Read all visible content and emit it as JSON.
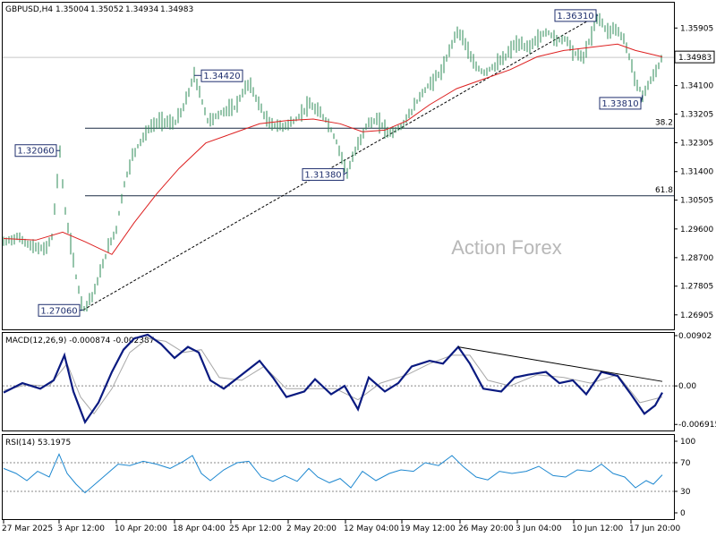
{
  "chart_data": {
    "type": "candlestick",
    "main": {
      "title": "GBPUSD,H4",
      "ohlc": [
        "1.35004",
        "1.35052",
        "1.34934",
        "1.34983"
      ],
      "ylim": [
        1.2645,
        1.367
      ],
      "yticks": [
        "1.35905",
        "1.35000",
        "1.34100",
        "1.33205",
        "1.32305",
        "1.31400",
        "1.30505",
        "1.29600",
        "1.28700",
        "1.27805",
        "1.26905"
      ],
      "current_price": "1.34983",
      "annotations": [
        {
          "text": "1.27060",
          "value": 1.2706,
          "bar": 93
        },
        {
          "text": "1.32060",
          "value": 1.3206,
          "bar": 67
        },
        {
          "text": "1.34420",
          "value": 1.3442,
          "bar": 217
        },
        {
          "text": "1.31380",
          "value": 1.3138,
          "bar": 388
        },
        {
          "text": "1.36310",
          "value": 1.3631,
          "bar": 668
        },
        {
          "text": "1.33810",
          "value": 1.3381,
          "bar": 718
        }
      ],
      "fib_levels": [
        {
          "label": "38.2",
          "value": 1.3276
        },
        {
          "label": "61.8",
          "value": 1.3064
        }
      ],
      "trendlines": [
        {
          "from": {
            "bar": 93,
            "value": 1.2706
          },
          "to": {
            "bar": 668,
            "value": 1.3631
          },
          "style": "dashed"
        }
      ],
      "price_path": [
        [
          4,
          1.2918
        ],
        [
          20,
          1.2935
        ],
        [
          35,
          1.2905
        ],
        [
          50,
          1.2895
        ],
        [
          58,
          1.2935
        ],
        [
          63,
          1.308
        ],
        [
          67,
          1.3206
        ],
        [
          72,
          1.303
        ],
        [
          78,
          1.293
        ],
        [
          85,
          1.281
        ],
        [
          93,
          1.2706
        ],
        [
          105,
          1.276
        ],
        [
          115,
          1.285
        ],
        [
          122,
          1.291
        ],
        [
          130,
          1.296
        ],
        [
          138,
          1.309
        ],
        [
          148,
          1.319
        ],
        [
          158,
          1.324
        ],
        [
          168,
          1.328
        ],
        [
          180,
          1.33
        ],
        [
          195,
          1.329
        ],
        [
          205,
          1.334
        ],
        [
          212,
          1.34
        ],
        [
          217,
          1.3442
        ],
        [
          225,
          1.337
        ],
        [
          232,
          1.33
        ],
        [
          240,
          1.331
        ],
        [
          250,
          1.333
        ],
        [
          262,
          1.334
        ],
        [
          270,
          1.338
        ],
        [
          278,
          1.342
        ],
        [
          288,
          1.336
        ],
        [
          300,
          1.329
        ],
        [
          315,
          1.328
        ],
        [
          330,
          1.33
        ],
        [
          345,
          1.335
        ],
        [
          355,
          1.333
        ],
        [
          365,
          1.33
        ],
        [
          375,
          1.324
        ],
        [
          388,
          1.3138
        ],
        [
          398,
          1.321
        ],
        [
          410,
          1.329
        ],
        [
          422,
          1.33
        ],
        [
          435,
          1.326
        ],
        [
          448,
          1.328
        ],
        [
          460,
          1.333
        ],
        [
          470,
          1.338
        ],
        [
          482,
          1.342
        ],
        [
          495,
          1.346
        ],
        [
          502,
          1.352
        ],
        [
          510,
          1.358
        ],
        [
          518,
          1.356
        ],
        [
          528,
          1.348
        ],
        [
          540,
          1.345
        ],
        [
          552,
          1.347
        ],
        [
          565,
          1.35
        ],
        [
          575,
          1.354
        ],
        [
          590,
          1.353
        ],
        [
          602,
          1.356
        ],
        [
          612,
          1.358
        ],
        [
          622,
          1.355
        ],
        [
          632,
          1.356
        ],
        [
          642,
          1.351
        ],
        [
          652,
          1.35
        ],
        [
          660,
          1.356
        ],
        [
          668,
          1.3631
        ],
        [
          678,
          1.358
        ],
        [
          688,
          1.359
        ],
        [
          698,
          1.355
        ],
        [
          705,
          1.348
        ],
        [
          712,
          1.341
        ],
        [
          718,
          1.3381
        ],
        [
          726,
          1.342
        ],
        [
          734,
          1.346
        ],
        [
          740,
          1.3498
        ]
      ],
      "sma_path": [
        [
          4,
          1.293
        ],
        [
          40,
          1.2925
        ],
        [
          70,
          1.295
        ],
        [
          95,
          1.292
        ],
        [
          125,
          1.288
        ],
        [
          150,
          1.298
        ],
        [
          175,
          1.307
        ],
        [
          200,
          1.315
        ],
        [
          230,
          1.323
        ],
        [
          260,
          1.326
        ],
        [
          290,
          1.329
        ],
        [
          320,
          1.33
        ],
        [
          350,
          1.3305
        ],
        [
          380,
          1.329
        ],
        [
          405,
          1.3265
        ],
        [
          430,
          1.327
        ],
        [
          455,
          1.33
        ],
        [
          480,
          1.335
        ],
        [
          510,
          1.34
        ],
        [
          540,
          1.343
        ],
        [
          570,
          1.346
        ],
        [
          600,
          1.35
        ],
        [
          630,
          1.352
        ],
        [
          660,
          1.353
        ],
        [
          690,
          1.354
        ],
        [
          710,
          1.352
        ],
        [
          740,
          1.35
        ]
      ]
    },
    "macd": {
      "title": "MACD(12,26,9) -0.000874 -0.002387",
      "ylim": [
        -0.008,
        0.0095
      ],
      "yticks": [
        "0.00902",
        "0.00",
        "-0.006915"
      ],
      "macd_path": [
        [
          4,
          -0.0012
        ],
        [
          25,
          0.0005
        ],
        [
          45,
          -0.0005
        ],
        [
          60,
          0.001
        ],
        [
          72,
          0.0055
        ],
        [
          82,
          -0.001
        ],
        [
          95,
          -0.0065
        ],
        [
          110,
          -0.003
        ],
        [
          125,
          0.0025
        ],
        [
          138,
          0.0065
        ],
        [
          150,
          0.0085
        ],
        [
          165,
          0.0092
        ],
        [
          180,
          0.0075
        ],
        [
          195,
          0.005
        ],
        [
          210,
          0.007
        ],
        [
          222,
          0.006
        ],
        [
          235,
          0.001
        ],
        [
          250,
          -0.0005
        ],
        [
          270,
          0.002
        ],
        [
          290,
          0.0045
        ],
        [
          305,
          0.0015
        ],
        [
          320,
          -0.002
        ],
        [
          340,
          -0.001
        ],
        [
          352,
          0.0012
        ],
        [
          370,
          -0.0015
        ],
        [
          385,
          0.0
        ],
        [
          400,
          -0.0042
        ],
        [
          412,
          0.0015
        ],
        [
          430,
          -0.001
        ],
        [
          445,
          0.0005
        ],
        [
          460,
          0.0035
        ],
        [
          480,
          0.0045
        ],
        [
          495,
          0.004
        ],
        [
          512,
          0.007
        ],
        [
          525,
          0.004
        ],
        [
          540,
          -0.0005
        ],
        [
          560,
          -0.001
        ],
        [
          575,
          0.0015
        ],
        [
          590,
          0.002
        ],
        [
          610,
          0.0025
        ],
        [
          625,
          0.0005
        ],
        [
          640,
          0.001
        ],
        [
          655,
          -0.0015
        ],
        [
          672,
          0.0025
        ],
        [
          690,
          0.0018
        ],
        [
          705,
          -0.0015
        ],
        [
          720,
          -0.005
        ],
        [
          732,
          -0.0035
        ],
        [
          740,
          -0.0012
        ]
      ],
      "signal_path": [
        [
          4,
          -0.0008
        ],
        [
          30,
          0.0002
        ],
        [
          55,
          0.0
        ],
        [
          75,
          0.004
        ],
        [
          90,
          -0.002
        ],
        [
          105,
          -0.005
        ],
        [
          125,
          -0.0005
        ],
        [
          145,
          0.006
        ],
        [
          165,
          0.0085
        ],
        [
          185,
          0.008
        ],
        [
          205,
          0.006
        ],
        [
          225,
          0.0065
        ],
        [
          245,
          0.0015
        ],
        [
          270,
          0.001
        ],
        [
          295,
          0.0035
        ],
        [
          320,
          -0.0005
        ],
        [
          345,
          -0.0005
        ],
        [
          375,
          -0.0005
        ],
        [
          400,
          -0.0025
        ],
        [
          425,
          0.0005
        ],
        [
          455,
          0.002
        ],
        [
          480,
          0.004
        ],
        [
          505,
          0.0055
        ],
        [
          525,
          0.0055
        ],
        [
          545,
          0.001
        ],
        [
          570,
          0.0
        ],
        [
          600,
          0.002
        ],
        [
          630,
          0.0015
        ],
        [
          660,
          0.0005
        ],
        [
          690,
          0.002
        ],
        [
          715,
          -0.003
        ],
        [
          740,
          -0.002
        ]
      ],
      "trendline": {
        "from": {
          "bar": 512,
          "value": 0.007
        },
        "to": {
          "bar": 740,
          "value": 0.0008
        }
      }
    },
    "rsi": {
      "title": "RSI(14) 53.1975",
      "ylim": [
        0,
        100
      ],
      "yticks": [
        "100",
        "70",
        "30",
        "0"
      ],
      "levels": [
        70,
        30
      ],
      "rsi_path": [
        [
          4,
          62
        ],
        [
          18,
          55
        ],
        [
          30,
          45
        ],
        [
          42,
          58
        ],
        [
          55,
          50
        ],
        [
          66,
          82
        ],
        [
          75,
          55
        ],
        [
          85,
          40
        ],
        [
          95,
          28
        ],
        [
          108,
          42
        ],
        [
          120,
          55
        ],
        [
          132,
          68
        ],
        [
          145,
          66
        ],
        [
          160,
          72
        ],
        [
          175,
          68
        ],
        [
          190,
          62
        ],
        [
          205,
          72
        ],
        [
          215,
          80
        ],
        [
          225,
          55
        ],
        [
          235,
          45
        ],
        [
          250,
          60
        ],
        [
          265,
          70
        ],
        [
          278,
          72
        ],
        [
          292,
          50
        ],
        [
          305,
          44
        ],
        [
          318,
          52
        ],
        [
          332,
          44
        ],
        [
          345,
          62
        ],
        [
          355,
          50
        ],
        [
          368,
          42
        ],
        [
          380,
          48
        ],
        [
          392,
          35
        ],
        [
          405,
          58
        ],
        [
          420,
          45
        ],
        [
          435,
          55
        ],
        [
          448,
          60
        ],
        [
          462,
          58
        ],
        [
          475,
          70
        ],
        [
          490,
          66
        ],
        [
          505,
          80
        ],
        [
          518,
          64
        ],
        [
          532,
          50
        ],
        [
          545,
          46
        ],
        [
          558,
          58
        ],
        [
          572,
          55
        ],
        [
          588,
          58
        ],
        [
          602,
          65
        ],
        [
          618,
          52
        ],
        [
          632,
          50
        ],
        [
          645,
          60
        ],
        [
          660,
          58
        ],
        [
          672,
          68
        ],
        [
          685,
          55
        ],
        [
          698,
          50
        ],
        [
          710,
          35
        ],
        [
          722,
          45
        ],
        [
          730,
          40
        ],
        [
          740,
          53
        ]
      ]
    },
    "x_tick_labels": [
      {
        "text": "27 Mar 2025",
        "bar": 4
      },
      {
        "text": "3 Apr 12:00",
        "bar": 66
      },
      {
        "text": "10 Apr 20:00",
        "bar": 130
      },
      {
        "text": "18 Apr 04:00",
        "bar": 195
      },
      {
        "text": "25 Apr 12:00",
        "bar": 258
      },
      {
        "text": "2 May 20:00",
        "bar": 322
      },
      {
        "text": "12 May 04:00",
        "bar": 386
      },
      {
        "text": "19 May 12:00",
        "bar": 449
      },
      {
        "text": "26 May 20:00",
        "bar": 514
      },
      {
        "text": "3 Jun 04:00",
        "bar": 578
      },
      {
        "text": "10 Jun 12:00",
        "bar": 641
      },
      {
        "text": "17 Jun 20:00",
        "bar": 705
      }
    ]
  },
  "watermark": "Action Forex",
  "colors": {
    "bars": "#2e8b57",
    "sma": "#dd2020",
    "macd": "#0a1a80",
    "signal": "#a8a8a8",
    "rsi": "#1e88d0",
    "label": "#1f2f6e",
    "grid": "#000000"
  }
}
